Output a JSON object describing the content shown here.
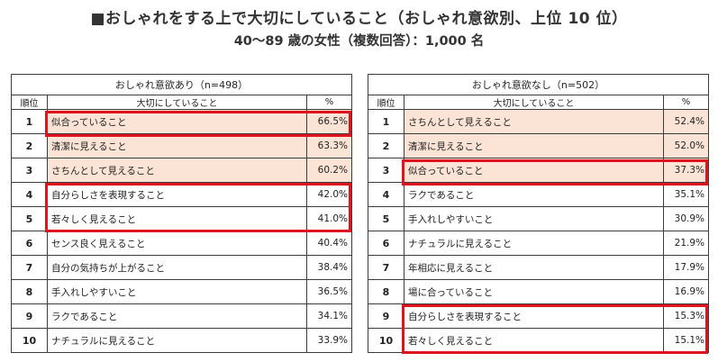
{
  "title": "■おしゃれをする上で大切にしていること（おしゃれ意欲別、上位 10 位）",
  "subtitle": "40～89 歳の女性（複数回答）：1,000 名",
  "colors": {
    "highlight_fill": "#fbe4d5",
    "box_border": "#e0141e"
  },
  "left": {
    "caption": "おしゃれ意欲あり（n=498）",
    "headers": {
      "rank": "順位",
      "item": "大切にしていること",
      "pct": "%"
    },
    "rows": [
      {
        "rank": "1",
        "item": "似合っていること",
        "pct": "66.5%"
      },
      {
        "rank": "2",
        "item": "清潔に見えること",
        "pct": "63.3%"
      },
      {
        "rank": "3",
        "item": "さちんとして見えること",
        "pct": "60.2%"
      },
      {
        "rank": "4",
        "item": "自分らしさを表現すること",
        "pct": "42.0%"
      },
      {
        "rank": "5",
        "item": "若々しく見えること",
        "pct": "41.0%"
      },
      {
        "rank": "6",
        "item": "センス良く見えること",
        "pct": "40.4%"
      },
      {
        "rank": "7",
        "item": "自分の気持ちが上がること",
        "pct": "38.4%"
      },
      {
        "rank": "8",
        "item": "手入れしやすいこと",
        "pct": "36.5%"
      },
      {
        "rank": "9",
        "item": "ラクであること",
        "pct": "34.1%"
      },
      {
        "rank": "10",
        "item": "ナチュラルに見えること",
        "pct": "33.9%"
      }
    ]
  },
  "right": {
    "caption": "おしゃれ意欲なし（n=502）",
    "headers": {
      "rank": "順位",
      "item": "大切にしていること",
      "pct": "%"
    },
    "rows": [
      {
        "rank": "1",
        "item": "さちんとして見えること",
        "pct": "52.4%"
      },
      {
        "rank": "2",
        "item": "清潔に見えること",
        "pct": "52.0%"
      },
      {
        "rank": "3",
        "item": "似合っていること",
        "pct": "37.3%"
      },
      {
        "rank": "4",
        "item": "ラクであること",
        "pct": "35.1%"
      },
      {
        "rank": "5",
        "item": "手入れしやすいこと",
        "pct": "30.9%"
      },
      {
        "rank": "6",
        "item": "ナチュラルに見えること",
        "pct": "21.9%"
      },
      {
        "rank": "7",
        "item": "年相応に見えること",
        "pct": "17.9%"
      },
      {
        "rank": "8",
        "item": "場に合っていること",
        "pct": "16.9%"
      },
      {
        "rank": "9",
        "item": "自分らしさを表現すること",
        "pct": "15.3%"
      },
      {
        "rank": "10",
        "item": "若々しく見えること",
        "pct": "15.1%"
      }
    ]
  }
}
